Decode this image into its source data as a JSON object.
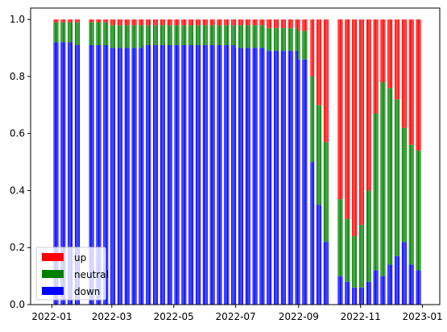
{
  "chart_data": {
    "type": "bar",
    "stacked": true,
    "title": "",
    "xlabel": "",
    "ylabel": "",
    "x_range": [
      "2021-12-11",
      "2023-01-18"
    ],
    "ylim": [
      0,
      1.04
    ],
    "x_ticks": [
      "2022-01",
      "2022-03",
      "2022-05",
      "2022-07",
      "2022-09",
      "2022-11",
      "2023-01"
    ],
    "y_ticks": [
      "0.0",
      "0.2",
      "0.4",
      "0.6",
      "0.8",
      "1.0"
    ],
    "grid": false,
    "legend": {
      "position": "lower-left",
      "entries": [
        "up",
        "neutral",
        "down"
      ]
    },
    "colors": {
      "up": "#ff0000",
      "neutral": "#008000",
      "down": "#0000ff"
    },
    "series_order_bottom_to_top": [
      "down",
      "neutral",
      "up"
    ],
    "bar_width_days": 0.8,
    "segments": [
      {
        "start": "2022-01-03",
        "end": "2022-01-21",
        "down": 0.92,
        "neutral": 0.07
      },
      {
        "start": "2022-01-24",
        "end": "2022-01-28",
        "down": 0.91,
        "neutral": 0.08
      },
      {
        "start": "2022-02-07",
        "end": "2022-02-25",
        "down": 0.91,
        "neutral": 0.08
      },
      {
        "start": "2022-02-28",
        "end": "2022-03-31",
        "down": 0.9,
        "neutral": 0.08
      },
      {
        "start": "2022-04-01",
        "end": "2022-04-29",
        "down": 0.91,
        "neutral": 0.07
      },
      {
        "start": "2022-05-02",
        "end": "2022-05-31",
        "down": 0.91,
        "neutral": 0.07
      },
      {
        "start": "2022-06-01",
        "end": "2022-06-30",
        "down": 0.91,
        "neutral": 0.07
      },
      {
        "start": "2022-07-01",
        "end": "2022-07-29",
        "down": 0.9,
        "neutral": 0.08
      },
      {
        "start": "2022-08-01",
        "end": "2022-08-31",
        "down": 0.89,
        "neutral": 0.08
      },
      {
        "start": "2022-09-01",
        "end": "2022-09-09",
        "down": 0.86,
        "neutral": 0.1
      },
      {
        "start": "2022-09-13",
        "end": "2022-09-16",
        "down": 0.5,
        "neutral": 0.3
      },
      {
        "start": "2022-09-19",
        "end": "2022-09-23",
        "down": 0.35,
        "neutral": 0.35
      },
      {
        "start": "2022-09-26",
        "end": "2022-09-30",
        "down": 0.22,
        "neutral": 0.35
      },
      {
        "start": "2022-10-10",
        "end": "2022-10-14",
        "down": 0.1,
        "neutral": 0.27
      },
      {
        "start": "2022-10-17",
        "end": "2022-10-21",
        "down": 0.08,
        "neutral": 0.22
      },
      {
        "start": "2022-10-24",
        "end": "2022-10-28",
        "down": 0.06,
        "neutral": 0.18
      },
      {
        "start": "2022-10-31",
        "end": "2022-11-04",
        "down": 0.06,
        "neutral": 0.22
      },
      {
        "start": "2022-11-07",
        "end": "2022-11-11",
        "down": 0.08,
        "neutral": 0.32
      },
      {
        "start": "2022-11-14",
        "end": "2022-11-18",
        "down": 0.12,
        "neutral": 0.55
      },
      {
        "start": "2022-11-21",
        "end": "2022-11-25",
        "down": 0.1,
        "neutral": 0.68
      },
      {
        "start": "2022-11-28",
        "end": "2022-12-02",
        "down": 0.14,
        "neutral": 0.62
      },
      {
        "start": "2022-12-05",
        "end": "2022-12-09",
        "down": 0.17,
        "neutral": 0.55
      },
      {
        "start": "2022-12-12",
        "end": "2022-12-16",
        "down": 0.22,
        "neutral": 0.4
      },
      {
        "start": "2022-12-19",
        "end": "2022-12-23",
        "down": 0.14,
        "neutral": 0.42
      },
      {
        "start": "2022-12-26",
        "end": "2022-12-30",
        "down": 0.12,
        "neutral": 0.42
      }
    ]
  }
}
